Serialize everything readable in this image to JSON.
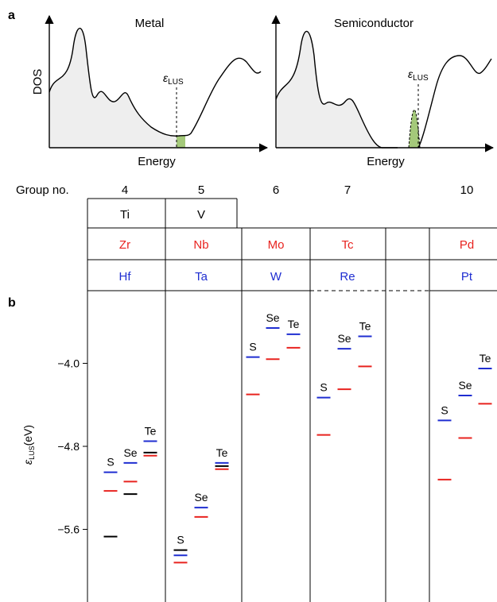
{
  "chart_data": [
    {
      "type": "area",
      "panel": "a",
      "title": "Metal",
      "xlabel": "Energy",
      "ylabel": "DOS",
      "marker_label": {
        "symbol": "ε",
        "sub": "LUS"
      },
      "highlight_color": "#a4c97a"
    },
    {
      "type": "area",
      "panel": "",
      "title": "Semiconductor",
      "xlabel": "Energy",
      "ylabel": "",
      "marker_label": {
        "symbol": "ε",
        "sub": "LUS"
      },
      "highlight_color": "#a4c97a"
    },
    {
      "type": "table",
      "row_header": "Group no.",
      "groups": [
        "4",
        "5",
        "6",
        "7",
        "10"
      ],
      "rows": [
        {
          "elements": [
            "Ti",
            "V",
            "",
            "",
            ""
          ],
          "color": "#000000"
        },
        {
          "elements": [
            "Zr",
            "Nb",
            "Mo",
            "Tc",
            "Pd"
          ],
          "color": "#e8231f"
        },
        {
          "elements": [
            "Hf",
            "Ta",
            "W",
            "Re",
            "Pt"
          ],
          "color": "#1f2ed1"
        }
      ]
    },
    {
      "type": "scatter",
      "panel": "b",
      "ylabel": {
        "symbol": "ε",
        "sub": "LUS",
        "unit": "(eV)"
      },
      "yticks": [
        "-4.0",
        "-4.8",
        "-5.6"
      ],
      "ylim": [
        -6.3,
        -3.3
      ],
      "series_colors": {
        "3d": "#000000",
        "4d": "#e8231f",
        "5d": "#1f2ed1"
      },
      "chalcogens": [
        "S",
        "Se",
        "Te"
      ],
      "groups": [
        {
          "group": "4",
          "points": [
            {
              "chal": "S",
              "3d": -5.67,
              "4d": -5.23,
              "5d": -5.05
            },
            {
              "chal": "Se",
              "3d": -5.26,
              "4d": -5.14,
              "5d": -4.96
            },
            {
              "chal": "Te",
              "3d": -4.86,
              "4d": -4.89,
              "5d": -4.75
            }
          ]
        },
        {
          "group": "5",
          "points": [
            {
              "chal": "S",
              "3d": -5.8,
              "4d": -5.92,
              "5d": -5.85
            },
            {
              "chal": "Se",
              "4d": -5.48,
              "5d": -5.39
            },
            {
              "chal": "Te",
              "3d": -4.99,
              "4d": -5.02,
              "5d": -4.96
            }
          ]
        },
        {
          "group": "6",
          "points": [
            {
              "chal": "S",
              "4d": -4.3,
              "5d": -3.94
            },
            {
              "chal": "Se",
              "4d": -3.96,
              "5d": -3.66
            },
            {
              "chal": "Te",
              "4d": -3.85,
              "5d": -3.72
            }
          ]
        },
        {
          "group": "7",
          "points": [
            {
              "chal": "S",
              "4d": -4.69,
              "5d": -4.33
            },
            {
              "chal": "Se",
              "4d": -4.25,
              "5d": -3.86
            },
            {
              "chal": "Te",
              "4d": -4.03,
              "5d": -3.74
            }
          ]
        },
        {
          "group": "10",
          "points": [
            {
              "chal": "S",
              "4d": -5.12,
              "5d": -4.55
            },
            {
              "chal": "Se",
              "4d": -4.72,
              "5d": -4.31
            },
            {
              "chal": "Te",
              "4d": -4.39,
              "5d": -4.05
            }
          ]
        }
      ]
    }
  ]
}
